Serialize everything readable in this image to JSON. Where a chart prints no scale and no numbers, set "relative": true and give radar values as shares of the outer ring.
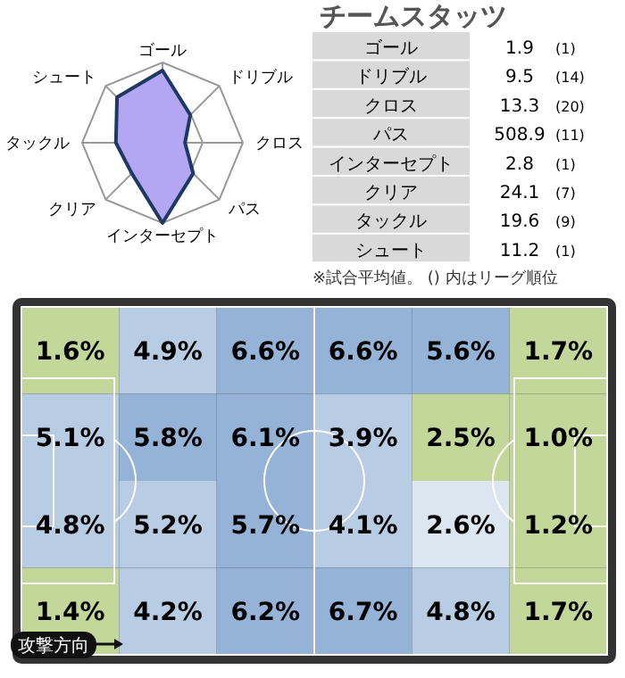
{
  "chart_data": [
    {
      "type": "radar",
      "relative": true,
      "categories": [
        "ゴール",
        "ドリブル",
        "クロス",
        "パス",
        "インターセプト",
        "クリア",
        "タックル",
        "シュート"
      ],
      "series": [
        {
          "color": "#b3a6f2",
          "values": [
            0.9,
            0.49,
            0.28,
            0.54,
            1.0,
            0.54,
            0.58,
            0.8
          ]
        }
      ]
    },
    {
      "type": "other",
      "title": "チームスタッツ",
      "categories": [
        "ゴール",
        "ドリブル",
        "クロス",
        "パス",
        "インターセプト",
        "クリア",
        "タックル",
        "シュート"
      ],
      "series": [
        {
          "values": [
            1.9,
            9.5,
            13.3,
            508.9,
            2.8,
            24.1,
            19.6,
            11.2
          ],
          "value_labels": [
            "1.9",
            "9.5",
            "13.3",
            "508.9",
            "2.8",
            "24.1",
            "19.6",
            "11.2"
          ]
        },
        {
          "values": [
            1,
            14,
            20,
            11,
            1,
            7,
            9,
            1
          ],
          "value_labels": [
            "(1)",
            "(14)",
            "(20)",
            "(11)",
            "(1)",
            "(7)",
            "(9)",
            "(1)"
          ]
        }
      ],
      "annotations": [
        "※試合平均値。 () 内はリーグ順位"
      ]
    },
    {
      "type": "heatmap",
      "categories": [
        null,
        null,
        null,
        null,
        null,
        null
      ],
      "y_categories": [
        null,
        null,
        null,
        null
      ],
      "cells": [
        [
          1.6,
          4.9,
          6.6,
          6.6,
          5.6,
          1.7
        ],
        [
          5.1,
          5.8,
          6.1,
          3.9,
          2.5,
          1.0
        ],
        [
          4.8,
          5.2,
          5.7,
          4.1,
          2.6,
          1.2
        ],
        [
          1.4,
          4.2,
          6.2,
          6.7,
          4.8,
          1.7
        ]
      ],
      "cell_labels": [
        [
          "1.6%",
          "4.9%",
          "6.6%",
          "6.6%",
          "5.6%",
          "1.7%"
        ],
        [
          "5.1%",
          "5.8%",
          "6.1%",
          "3.9%",
          "2.5%",
          "1.0%"
        ],
        [
          "4.8%",
          "5.2%",
          "5.7%",
          "4.1%",
          "2.6%",
          "1.2%"
        ],
        [
          "1.4%",
          "4.2%",
          "6.2%",
          "6.7%",
          "4.8%",
          "1.7%"
        ]
      ],
      "annotations": [
        "攻撃方向"
      ]
    }
  ]
}
